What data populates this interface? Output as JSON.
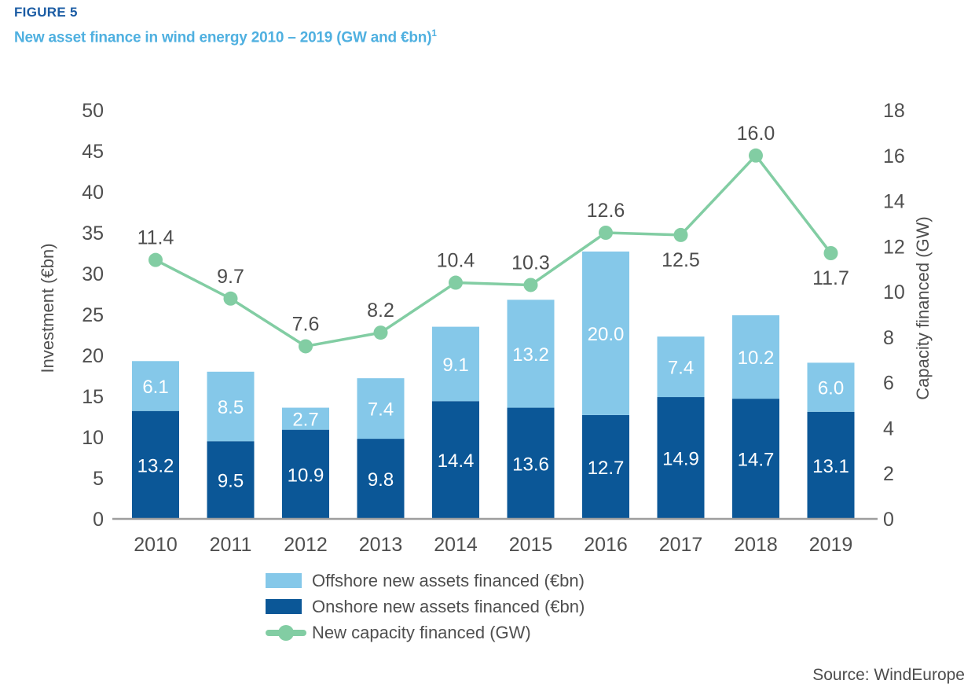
{
  "header": {
    "figure_label": "FIGURE 5",
    "title": "New asset finance in wind energy 2010 – 2019 (GW and €bn)",
    "footnote_marker": "1"
  },
  "footer": {
    "source": "Source: WindEurope"
  },
  "colors": {
    "navy": "#1b5ca4",
    "sky": "#4fb0e0",
    "offshore": "#85c8e9",
    "onshore": "#0b5797",
    "line_green": "#82cda3",
    "text_gray": "#4f4f4f",
    "value_gray": "#4d4d4d",
    "baseline_gray": "#9e9e9e",
    "bar_label_white": "#ffffff"
  },
  "chart_data": {
    "type": "combo_stacked_bar_line",
    "title": "New asset finance in wind energy 2010 – 2019 (GW and €bn)",
    "categories": [
      "2010",
      "2011",
      "2012",
      "2013",
      "2014",
      "2015",
      "2016",
      "2017",
      "2018",
      "2019"
    ],
    "series": [
      {
        "name": "Offshore new assets financed (€bn)",
        "type": "bar",
        "stack": "investment",
        "axis": "left",
        "values": [
          6.1,
          8.5,
          2.7,
          7.4,
          9.1,
          13.2,
          20.0,
          7.4,
          10.2,
          6.0
        ]
      },
      {
        "name": "Onshore new assets financed (€bn)",
        "type": "bar",
        "stack": "investment",
        "axis": "left",
        "values": [
          13.2,
          9.5,
          10.9,
          9.8,
          14.4,
          13.6,
          12.7,
          14.9,
          14.7,
          13.1
        ]
      },
      {
        "name": "New capacity financed (GW)",
        "type": "line",
        "axis": "right",
        "values": [
          11.4,
          9.7,
          7.6,
          8.2,
          10.4,
          10.3,
          12.6,
          12.5,
          16.0,
          11.7
        ],
        "label_positions": [
          "above",
          "above",
          "above",
          "above",
          "above",
          "above",
          "above",
          "below",
          "above",
          "below"
        ]
      }
    ],
    "stack_order_bottom_to_top": [
      "Onshore new assets financed (€bn)",
      "Offshore new assets financed (€bn)"
    ],
    "left_axis": {
      "label": "Investment (€bn)",
      "min": 0,
      "max": 50,
      "step": 5
    },
    "right_axis": {
      "label": "Capacity financed (GW)",
      "min": 0,
      "max": 18,
      "step": 2
    },
    "grid": false,
    "legend_position": "bottom",
    "value_format_decimals": 1
  }
}
